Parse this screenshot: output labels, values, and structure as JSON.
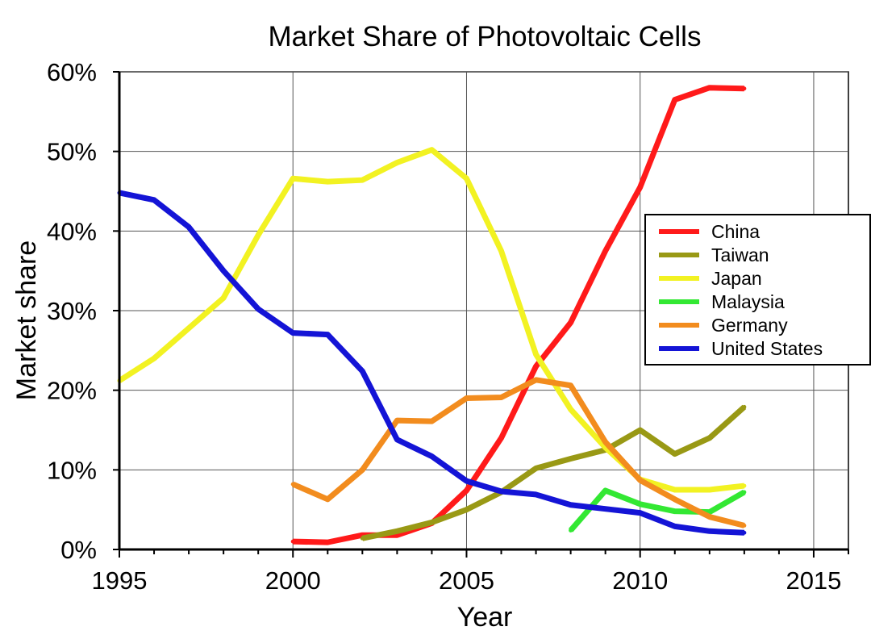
{
  "chart_data": {
    "type": "line",
    "title": "Market Share of Photovoltaic Cells",
    "xlabel": "Year",
    "ylabel": "Market share",
    "xlim": [
      1995,
      2016
    ],
    "ylim": [
      0,
      60
    ],
    "xticks": [
      1995,
      2000,
      2005,
      2010,
      2015
    ],
    "yticks": [
      0,
      10,
      20,
      30,
      40,
      50,
      60
    ],
    "ytick_labels": [
      "0%",
      "10%",
      "20%",
      "30%",
      "40%",
      "50%",
      "60%"
    ],
    "grid": true,
    "legend_position": "right",
    "series": [
      {
        "name": "China",
        "color": "#ff1a1a",
        "x": [
          2000,
          2001,
          2002,
          2003,
          2004,
          2005,
          2006,
          2007,
          2008,
          2009,
          2010,
          2011,
          2012,
          2013
        ],
        "y": [
          1.0,
          0.9,
          1.8,
          1.8,
          3.3,
          7.4,
          14.0,
          23.0,
          28.5,
          37.5,
          45.5,
          56.5,
          58.0,
          57.9
        ]
      },
      {
        "name": "Taiwan",
        "color": "#999915",
        "x": [
          2002,
          2003,
          2004,
          2005,
          2006,
          2007,
          2008,
          2009,
          2010,
          2011,
          2012,
          2013
        ],
        "y": [
          1.4,
          2.3,
          3.4,
          5.0,
          7.2,
          10.2,
          11.4,
          12.5,
          15.0,
          12.0,
          14.0,
          17.9
        ]
      },
      {
        "name": "Japan",
        "color": "#f2f222",
        "x": [
          1995,
          1996,
          1997,
          1998,
          1999,
          2000,
          2001,
          2002,
          2003,
          2004,
          2005,
          2006,
          2007,
          2008,
          2009,
          2010,
          2011,
          2012,
          2013
        ],
        "y": [
          21.2,
          24.0,
          27.8,
          31.6,
          39.5,
          46.6,
          46.2,
          46.4,
          48.6,
          50.2,
          46.6,
          37.5,
          24.5,
          17.6,
          12.8,
          8.8,
          7.5,
          7.5,
          8.0
        ]
      },
      {
        "name": "Malaysia",
        "color": "#33e833",
        "x": [
          2008,
          2009,
          2010,
          2011,
          2012,
          2013
        ],
        "y": [
          2.4,
          7.4,
          5.7,
          4.8,
          4.7,
          7.2
        ]
      },
      {
        "name": "Germany",
        "color": "#f28c1e",
        "x": [
          2000,
          2001,
          2002,
          2003,
          2004,
          2005,
          2006,
          2007,
          2008,
          2009,
          2010,
          2011,
          2012,
          2013
        ],
        "y": [
          8.2,
          6.3,
          10.0,
          16.2,
          16.1,
          19.0,
          19.1,
          21.3,
          20.6,
          13.5,
          8.7,
          6.3,
          4.1,
          3.0
        ]
      },
      {
        "name": "United States",
        "color": "#1414d6",
        "x": [
          1995,
          1996,
          1997,
          1998,
          1999,
          2000,
          2001,
          2002,
          2003,
          2004,
          2005,
          2006,
          2007,
          2008,
          2009,
          2010,
          2011,
          2012,
          2013
        ],
        "y": [
          44.8,
          43.9,
          40.5,
          35.0,
          30.2,
          27.2,
          27.0,
          22.4,
          13.8,
          11.7,
          8.6,
          7.3,
          6.9,
          5.6,
          5.1,
          4.6,
          2.9,
          2.3,
          2.1
        ]
      }
    ]
  }
}
